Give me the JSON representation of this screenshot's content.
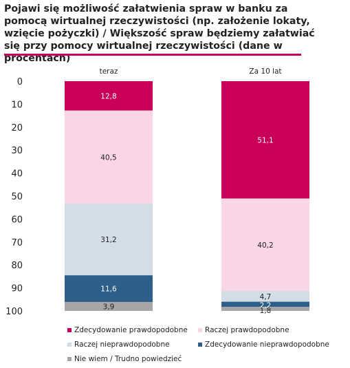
{
  "chart_data": {
    "type": "bar",
    "stacked": true,
    "title": "Pojawi się możliwość załatwienia spraw w banku za pomocą wirtualnej rzeczywistości (np. założenie lokaty, wzięcie pożyczki)  / Większość spraw będziemy załatwiać się przy pomocy wirtualnej rzeczywistości (dane w procentach)",
    "categories": [
      "teraz",
      "Za 10 lat"
    ],
    "y_ticks": [
      "0",
      "10",
      "20",
      "30",
      "40",
      "50",
      "60",
      "70",
      "80",
      "90",
      "100"
    ],
    "ylim": [
      0,
      100
    ],
    "y_inverted": true,
    "grid": false,
    "legend_position": "bottom",
    "series": [
      {
        "name": "Zdecydowanie prawdopodobne",
        "color": "#c8005a",
        "values": [
          12.8,
          51.1
        ],
        "labels": [
          "12,8",
          "51,1"
        ]
      },
      {
        "name": "Raczej prawdopodobne",
        "color": "#f9d5e5",
        "values": [
          40.5,
          40.2
        ],
        "labels": [
          "40,5",
          "40,2"
        ]
      },
      {
        "name": "Raczej nieprawdopodobne",
        "color": "#d3dde8",
        "values": [
          31.2,
          4.7
        ],
        "labels": [
          "31,2",
          "4,7"
        ]
      },
      {
        "name": "Zdecydowanie nieprawdopodobne",
        "color": "#2e5f8a",
        "values": [
          11.6,
          2.2
        ],
        "labels": [
          "11,6",
          "2,2"
        ]
      },
      {
        "name": "Nie wiem / Trudno powiedzieć",
        "color": "#a6a6a6",
        "values": [
          3.9,
          1.8
        ],
        "labels": [
          "3,9",
          "1,8"
        ]
      }
    ]
  }
}
